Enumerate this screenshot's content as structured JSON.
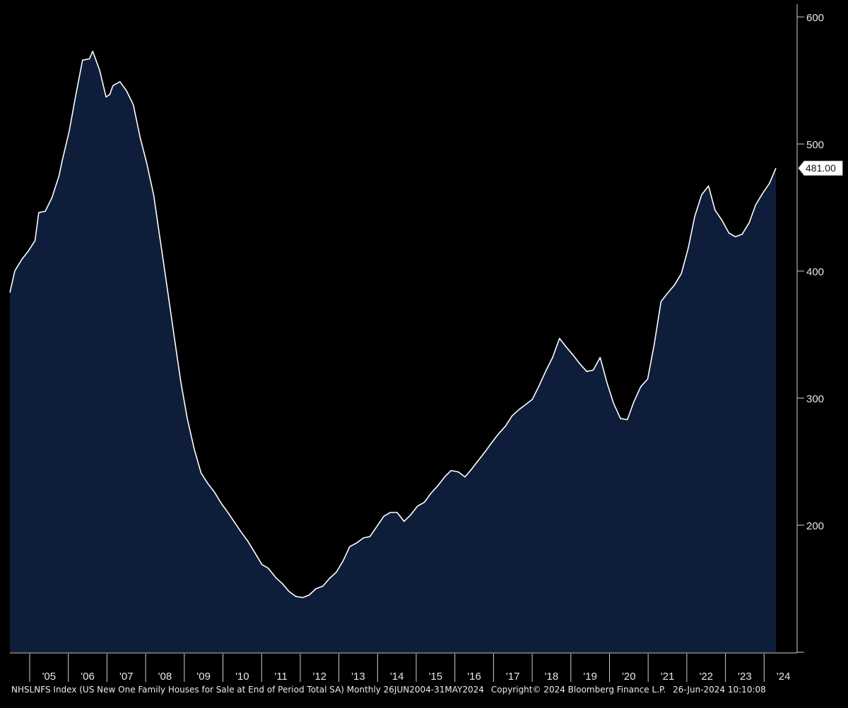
{
  "chart_data": {
    "type": "area",
    "series": [
      {
        "values": [
          [
            2004.46,
            383
          ],
          [
            2004.58,
            400
          ],
          [
            2004.75,
            409
          ],
          [
            2004.92,
            416
          ],
          [
            2005.08,
            424
          ],
          [
            2005.17,
            446
          ],
          [
            2005.33,
            447
          ],
          [
            2005.5,
            458
          ],
          [
            2005.67,
            475
          ],
          [
            2005.75,
            487
          ],
          [
            2005.92,
            510
          ],
          [
            2006.08,
            538
          ],
          [
            2006.25,
            566
          ],
          [
            2006.42,
            567
          ],
          [
            2006.5,
            573
          ],
          [
            2006.67,
            558
          ],
          [
            2006.83,
            537
          ],
          [
            2006.92,
            539
          ],
          [
            2007.0,
            546
          ],
          [
            2007.17,
            549
          ],
          [
            2007.33,
            542
          ],
          [
            2007.5,
            531
          ],
          [
            2007.67,
            505
          ],
          [
            2007.83,
            485
          ],
          [
            2008.0,
            460
          ],
          [
            2008.17,
            423
          ],
          [
            2008.33,
            388
          ],
          [
            2008.5,
            350
          ],
          [
            2008.67,
            313
          ],
          [
            2008.83,
            284
          ],
          [
            2009.0,
            260
          ],
          [
            2009.17,
            241
          ],
          [
            2009.33,
            233
          ],
          [
            2009.5,
            226
          ],
          [
            2009.67,
            217
          ],
          [
            2009.83,
            210
          ],
          [
            2010.0,
            202
          ],
          [
            2010.17,
            194
          ],
          [
            2010.33,
            187
          ],
          [
            2010.5,
            178
          ],
          [
            2010.67,
            169
          ],
          [
            2010.83,
            166
          ],
          [
            2011.0,
            159
          ],
          [
            2011.17,
            154
          ],
          [
            2011.33,
            148
          ],
          [
            2011.5,
            144
          ],
          [
            2011.67,
            143
          ],
          [
            2011.83,
            145
          ],
          [
            2012.0,
            150
          ],
          [
            2012.17,
            152
          ],
          [
            2012.33,
            158
          ],
          [
            2012.5,
            163
          ],
          [
            2012.67,
            172
          ],
          [
            2012.83,
            183
          ],
          [
            2013.0,
            186
          ],
          [
            2013.17,
            190
          ],
          [
            2013.33,
            191
          ],
          [
            2013.5,
            199
          ],
          [
            2013.67,
            207
          ],
          [
            2013.83,
            210
          ],
          [
            2014.0,
            210
          ],
          [
            2014.17,
            203
          ],
          [
            2014.33,
            208
          ],
          [
            2014.5,
            215
          ],
          [
            2014.67,
            218
          ],
          [
            2014.83,
            225
          ],
          [
            2015.0,
            231
          ],
          [
            2015.17,
            238
          ],
          [
            2015.33,
            243
          ],
          [
            2015.5,
            242
          ],
          [
            2015.67,
            238
          ],
          [
            2015.83,
            244
          ],
          [
            2016.0,
            251
          ],
          [
            2016.17,
            258
          ],
          [
            2016.33,
            265
          ],
          [
            2016.5,
            272
          ],
          [
            2016.67,
            278
          ],
          [
            2016.83,
            286
          ],
          [
            2017.0,
            291
          ],
          [
            2017.17,
            295
          ],
          [
            2017.33,
            299
          ],
          [
            2017.5,
            310
          ],
          [
            2017.67,
            322
          ],
          [
            2017.83,
            332
          ],
          [
            2018.0,
            347
          ],
          [
            2018.17,
            340
          ],
          [
            2018.33,
            334
          ],
          [
            2018.5,
            327
          ],
          [
            2018.67,
            321
          ],
          [
            2018.83,
            322
          ],
          [
            2019.0,
            332
          ],
          [
            2019.17,
            312
          ],
          [
            2019.33,
            296
          ],
          [
            2019.5,
            284
          ],
          [
            2019.67,
            283
          ],
          [
            2019.83,
            297
          ],
          [
            2020.0,
            309
          ],
          [
            2020.17,
            315
          ],
          [
            2020.33,
            342
          ],
          [
            2020.5,
            376
          ],
          [
            2020.67,
            383
          ],
          [
            2020.83,
            389
          ],
          [
            2021.0,
            398
          ],
          [
            2021.17,
            418
          ],
          [
            2021.33,
            443
          ],
          [
            2021.5,
            460
          ],
          [
            2021.67,
            467
          ],
          [
            2021.83,
            448
          ],
          [
            2022.0,
            440
          ],
          [
            2022.17,
            430
          ],
          [
            2022.33,
            427
          ],
          [
            2022.5,
            429
          ],
          [
            2022.67,
            438
          ],
          [
            2022.83,
            452
          ],
          [
            2023.0,
            461
          ],
          [
            2023.17,
            469
          ],
          [
            2023.33,
            481
          ]
        ]
      }
    ],
    "x_ticks": [
      "'05",
      "'06",
      "'07",
      "'08",
      "'09",
      "'10",
      "'11",
      "'12",
      "'13",
      "'14",
      "'15",
      "'16",
      "'17",
      "'18",
      "'19",
      "'20",
      "'21",
      "'22",
      "'23",
      "'24"
    ],
    "y_ticks": [
      200,
      300,
      400,
      500,
      600
    ],
    "ylim": [
      100,
      610
    ],
    "xlim": [
      2004.46,
      2024.5
    ],
    "last_value_label": "481.00",
    "grid": false,
    "colors": {
      "background": "#000000",
      "fill": "#0e1d3a",
      "line": "#ffffff",
      "axis": "#cfcfcf"
    }
  },
  "footer": {
    "index_text": "NHSLNFS Index (US New One Family Houses for Sale at End of Period Total SA)  Monthly 26JUN2004-31MAY2024",
    "copyright": "Copyright© 2024 Bloomberg Finance L.P.",
    "timestamp": "26-Jun-2024 10:10:08"
  }
}
